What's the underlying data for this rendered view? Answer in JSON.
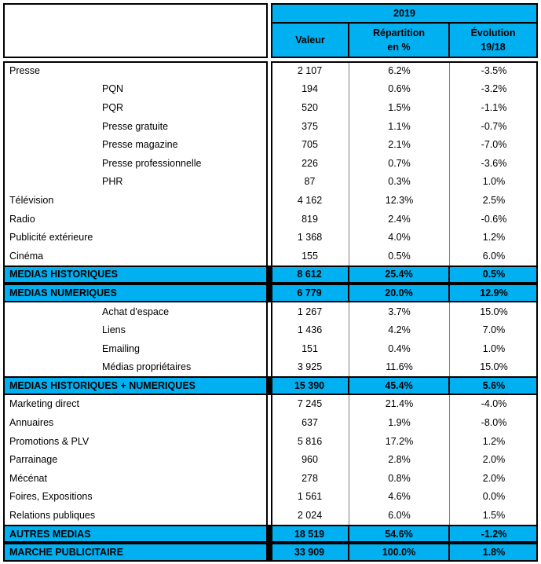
{
  "colors": {
    "header_fill": "#00B0F0",
    "total_row_fill": "#00B0F0",
    "border": "#000000",
    "grid_line": "#7F7F7F",
    "text": "#000000"
  },
  "header": {
    "year": "2019",
    "valeur": "Valeur",
    "repartition": [
      "Répartition",
      "en %"
    ],
    "evolution": [
      "Évolution",
      "19/18"
    ]
  },
  "chart_data": {
    "type": "table",
    "year": "2019",
    "columns": [
      "Valeur",
      "Répartition en %",
      "Évolution 19/18"
    ],
    "rows": [
      {
        "label": "Presse",
        "level": 0,
        "style": "normal",
        "valeur": "2 107",
        "repartition": "6.2%",
        "evolution": "-3.5%"
      },
      {
        "label": "PQN",
        "level": 1,
        "style": "normal",
        "valeur": "194",
        "repartition": "0.6%",
        "evolution": "-3.2%"
      },
      {
        "label": "PQR",
        "level": 1,
        "style": "normal",
        "valeur": "520",
        "repartition": "1.5%",
        "evolution": "-1.1%"
      },
      {
        "label": "Presse gratuite",
        "level": 1,
        "style": "normal",
        "valeur": "375",
        "repartition": "1.1%",
        "evolution": "-0.7%"
      },
      {
        "label": "Presse magazine",
        "level": 1,
        "style": "normal",
        "valeur": "705",
        "repartition": "2.1%",
        "evolution": "-7.0%"
      },
      {
        "label": "Presse professionnelle",
        "level": 1,
        "style": "normal",
        "valeur": "226",
        "repartition": "0.7%",
        "evolution": "-3.6%"
      },
      {
        "label": "PHR",
        "level": 1,
        "style": "normal",
        "valeur": "87",
        "repartition": "0.3%",
        "evolution": "1.0%"
      },
      {
        "label": "Télévision",
        "level": 0,
        "style": "normal",
        "valeur": "4 162",
        "repartition": "12.3%",
        "evolution": "2.5%"
      },
      {
        "label": "Radio",
        "level": 0,
        "style": "normal",
        "valeur": "819",
        "repartition": "2.4%",
        "evolution": "-0.6%"
      },
      {
        "label": "Publicité extérieure",
        "level": 0,
        "style": "normal",
        "valeur": "1 368",
        "repartition": "4.0%",
        "evolution": "1.2%"
      },
      {
        "label": "Cinéma",
        "level": 0,
        "style": "normal",
        "valeur": "155",
        "repartition": "0.5%",
        "evolution": "6.0%"
      },
      {
        "label": "MEDIAS HISTORIQUES",
        "level": 0,
        "style": "total",
        "valeur": "8 612",
        "repartition": "25.4%",
        "evolution": "0.5%"
      },
      {
        "label": "MEDIAS NUMERIQUES",
        "level": 0,
        "style": "total",
        "valeur": "6 779",
        "repartition": "20.0%",
        "evolution": "12.9%"
      },
      {
        "label": "Achat d'espace",
        "level": 1,
        "style": "normal",
        "valeur": "1 267",
        "repartition": "3.7%",
        "evolution": "15.0%"
      },
      {
        "label": "Liens",
        "level": 1,
        "style": "normal",
        "valeur": "1 436",
        "repartition": "4.2%",
        "evolution": "7.0%"
      },
      {
        "label": "Emailing",
        "level": 1,
        "style": "normal",
        "valeur": "151",
        "repartition": "0.4%",
        "evolution": "1.0%"
      },
      {
        "label": "Médias propriétaires",
        "level": 1,
        "style": "normal",
        "valeur": "3 925",
        "repartition": "11.6%",
        "evolution": "15.0%"
      },
      {
        "label": "MEDIAS HISTORIQUES + NUMERIQUES",
        "level": 0,
        "style": "total",
        "valeur": "15 390",
        "repartition": "45.4%",
        "evolution": "5.6%"
      },
      {
        "label": "Marketing direct",
        "level": 0,
        "style": "normal",
        "valeur": "7 245",
        "repartition": "21.4%",
        "evolution": "-4.0%"
      },
      {
        "label": "Annuaires",
        "level": 0,
        "style": "normal",
        "valeur": "637",
        "repartition": "1.9%",
        "evolution": "-8.0%"
      },
      {
        "label": "Promotions & PLV",
        "level": 0,
        "style": "normal",
        "valeur": "5 816",
        "repartition": "17.2%",
        "evolution": "1.2%"
      },
      {
        "label": "Parrainage",
        "level": 0,
        "style": "normal",
        "valeur": "960",
        "repartition": "2.8%",
        "evolution": "2.0%"
      },
      {
        "label": "Mécénat",
        "level": 0,
        "style": "normal",
        "valeur": "278",
        "repartition": "0.8%",
        "evolution": "2.0%"
      },
      {
        "label": "Foires, Expositions",
        "level": 0,
        "style": "normal",
        "valeur": "1 561",
        "repartition": "4.6%",
        "evolution": "0.0%"
      },
      {
        "label": "Relations publiques",
        "level": 0,
        "style": "normal",
        "valeur": "2 024",
        "repartition": "6.0%",
        "evolution": "1.5%"
      },
      {
        "label": "AUTRES MEDIAS",
        "level": 0,
        "style": "total",
        "valeur": "18 519",
        "repartition": "54.6%",
        "evolution": "-1.2%"
      },
      {
        "label": "MARCHE PUBLICITAIRE",
        "level": 0,
        "style": "total",
        "valeur": "33 909",
        "repartition": "100.0%",
        "evolution": "1.8%"
      }
    ]
  }
}
